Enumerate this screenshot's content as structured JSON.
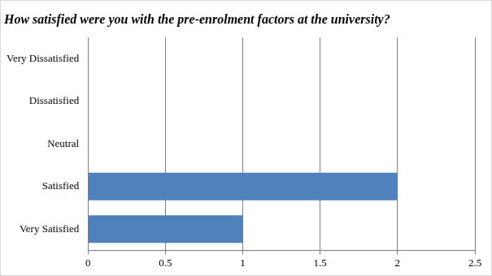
{
  "chart_data": {
    "type": "bar",
    "orientation": "horizontal",
    "title": "How satisfied were you with the pre-enrolment factors at the university?",
    "categories": [
      "Very Dissatisfied",
      "Dissatisfied",
      "Neutral",
      "Satisfied",
      "Very Satisfied"
    ],
    "values": [
      0,
      0,
      0,
      2,
      1
    ],
    "color": "#4f81bd",
    "xlim": [
      0,
      2.5
    ],
    "xticks": [
      0,
      0.5,
      1,
      1.5,
      2,
      2.5
    ],
    "grid": true
  }
}
